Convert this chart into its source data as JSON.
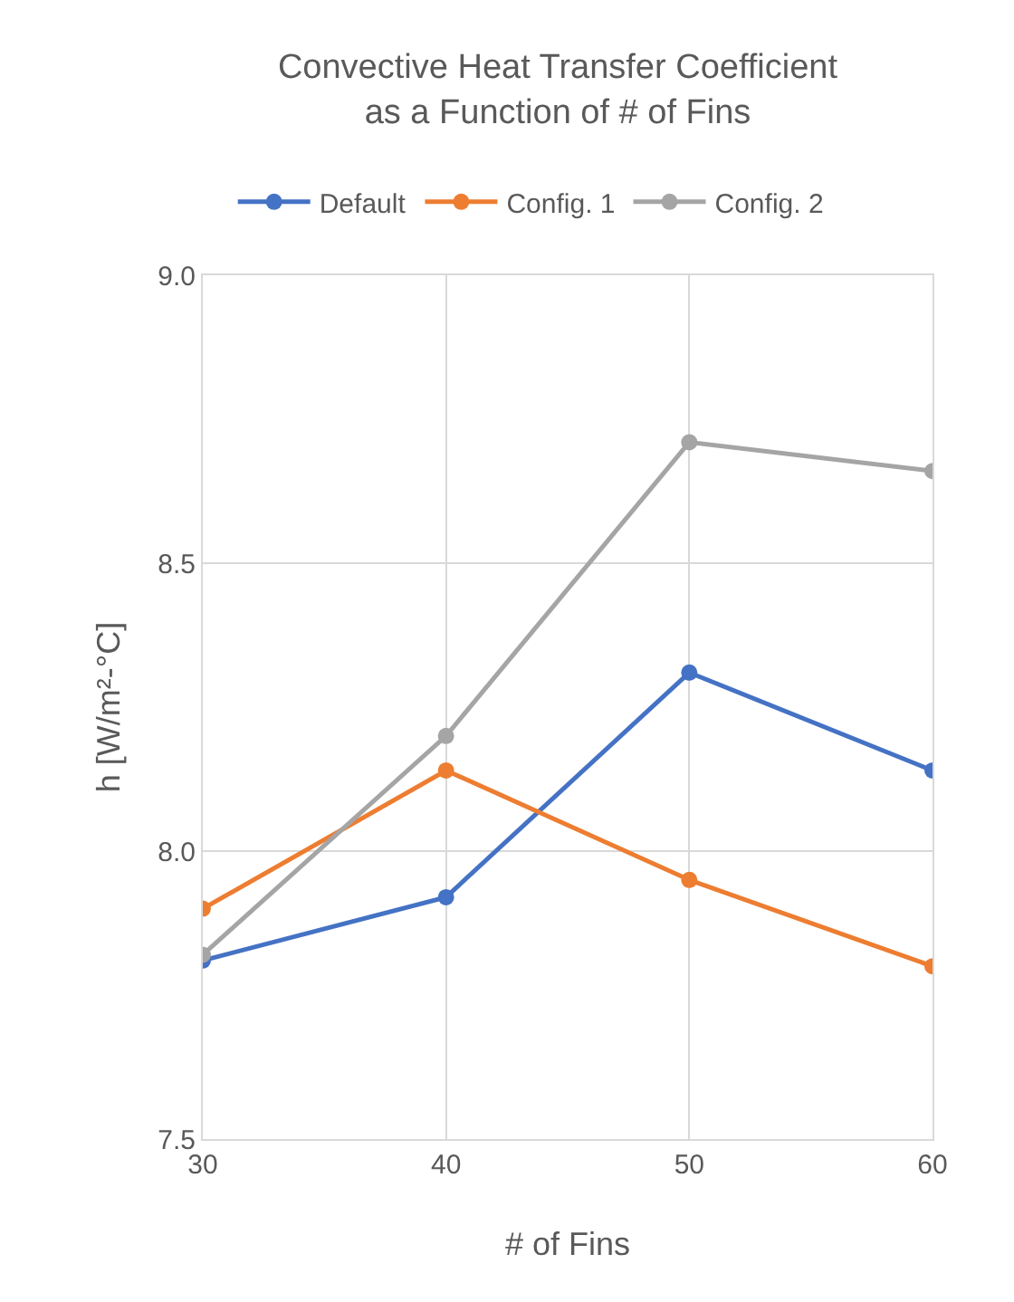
{
  "chart_data": {
    "type": "line",
    "title": "Convective Heat Transfer Coefficient\nas a Function of # of Fins",
    "xlabel": "# of Fins",
    "ylabel": "h [W/m²-°C]",
    "x": [
      30,
      40,
      50,
      60
    ],
    "series": [
      {
        "name": "Default",
        "color": "#4472c4",
        "values": [
          7.81,
          7.92,
          8.31,
          8.14
        ]
      },
      {
        "name": "Config. 1",
        "color": "#ed7d31",
        "values": [
          7.9,
          8.14,
          7.95,
          7.8
        ]
      },
      {
        "name": "Config. 2",
        "color": "#a5a5a5",
        "values": [
          7.82,
          8.2,
          8.71,
          8.66
        ]
      }
    ],
    "xlim": [
      30,
      60
    ],
    "xticks": [
      30,
      40,
      50,
      60
    ],
    "ylim": [
      7.5,
      9
    ],
    "yticks": [
      {
        "value": 7.5,
        "label": "7.5"
      },
      {
        "value": 8,
        "label": "8.0"
      },
      {
        "value": 8.5,
        "label": "8.5"
      },
      {
        "value": 9,
        "label": "9.0"
      }
    ],
    "grid": true,
    "legend": "top",
    "marker": "circle",
    "line_style": "solid"
  }
}
